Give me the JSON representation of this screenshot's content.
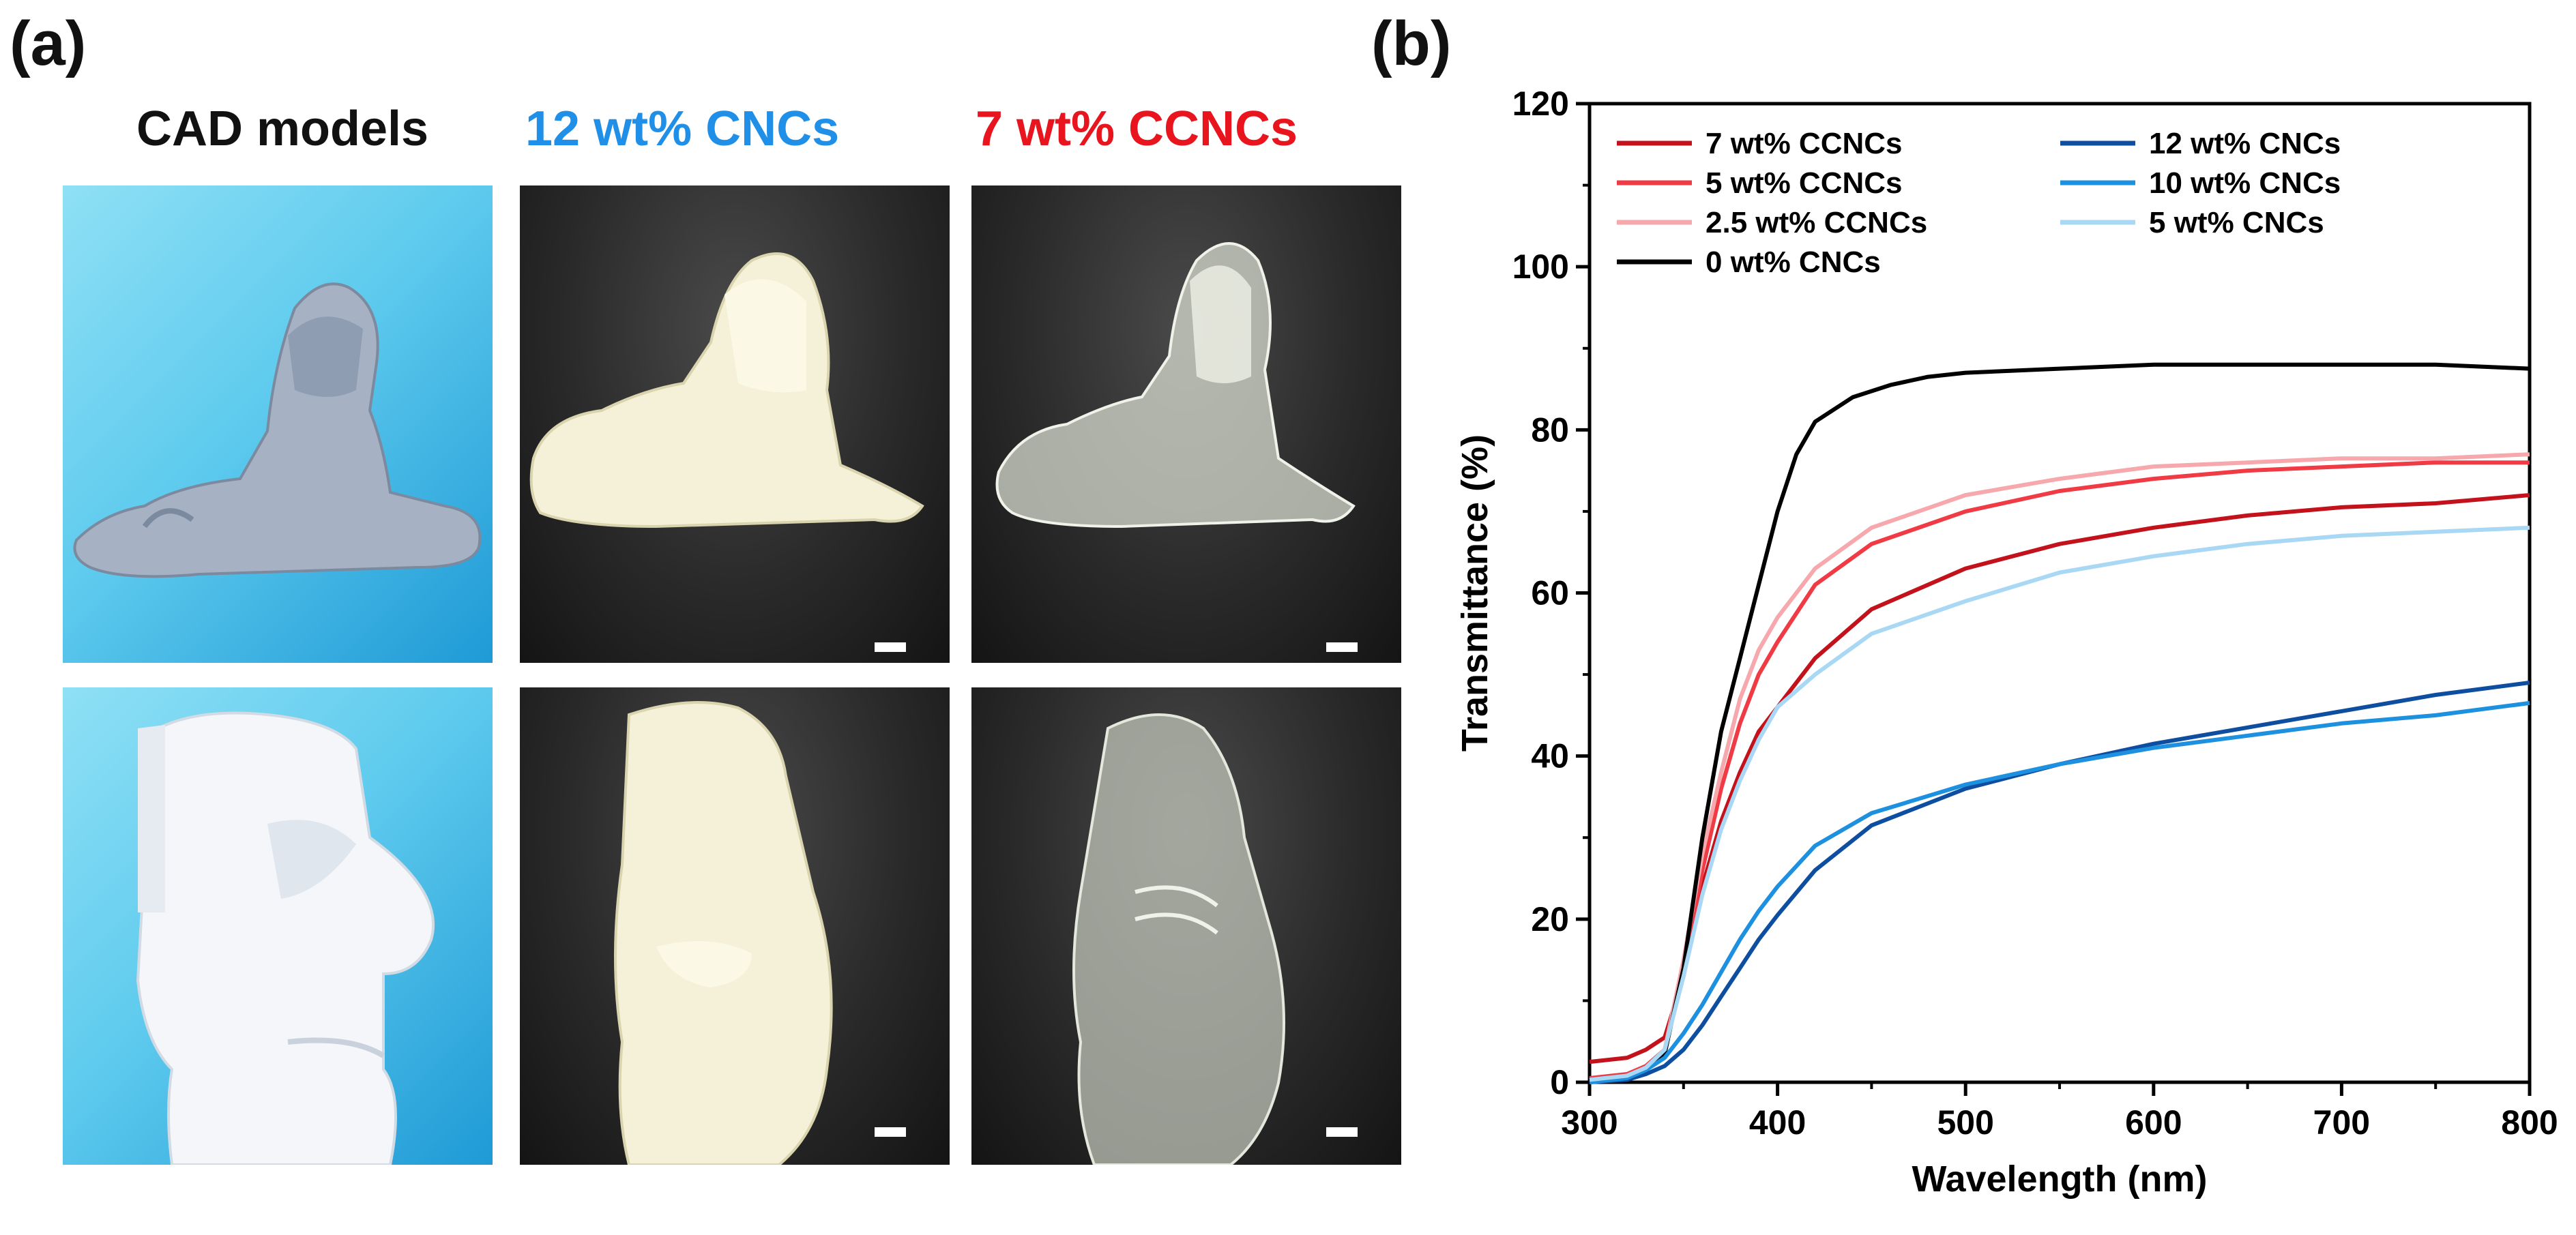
{
  "panel_a": {
    "label": "(a)",
    "headers": {
      "cad": "CAD models",
      "cnc": "12 wt% CNCs",
      "ccnc": "7 wt% CCNCs"
    },
    "colors": {
      "cad": "#111111",
      "cnc": "#1f8fe8",
      "ccnc": "#e8141e"
    }
  },
  "panel_b": {
    "label": "(b)"
  },
  "chart_data": {
    "type": "line",
    "title": "",
    "xlabel": "Wavelength (nm)",
    "ylabel": "Transmittance (%)",
    "xlim": [
      300,
      800
    ],
    "ylim": [
      0,
      120
    ],
    "xticks": [
      300,
      400,
      500,
      600,
      700,
      800
    ],
    "yticks": [
      0,
      20,
      40,
      60,
      80,
      100,
      120
    ],
    "grid": false,
    "legend_position": "top-left",
    "legend_columns": [
      [
        "7 wt% CCNCs",
        "5 wt% CCNCs",
        "2.5 wt% CCNCs",
        "0 wt% CNCs"
      ],
      [
        "12 wt% CNCs",
        "10 wt% CNCs",
        "5 wt% CNCs"
      ]
    ],
    "series": [
      {
        "name": "7 wt% CCNCs",
        "color": "#c3121b",
        "x": [
          300,
          320,
          330,
          340,
          350,
          360,
          370,
          380,
          390,
          400,
          420,
          450,
          500,
          550,
          600,
          650,
          700,
          750,
          800
        ],
        "y": [
          2.5,
          3.0,
          4.0,
          5.5,
          13,
          24,
          32,
          38,
          43,
          46,
          52,
          58,
          63,
          66,
          68,
          69.5,
          70.5,
          71,
          72
        ]
      },
      {
        "name": "5 wt% CCNCs",
        "color": "#f03a44",
        "x": [
          300,
          320,
          330,
          340,
          350,
          360,
          370,
          380,
          390,
          400,
          420,
          450,
          500,
          550,
          600,
          650,
          700,
          750,
          800
        ],
        "y": [
          0.5,
          1.0,
          2.0,
          4.0,
          14,
          26,
          36,
          44,
          50,
          54,
          61,
          66,
          70,
          72.5,
          74,
          75,
          75.5,
          76,
          76
        ]
      },
      {
        "name": "2.5 wt% CCNCs",
        "color": "#f6a8ad",
        "x": [
          300,
          320,
          330,
          340,
          350,
          360,
          370,
          380,
          390,
          400,
          420,
          450,
          500,
          550,
          600,
          650,
          700,
          750,
          800
        ],
        "y": [
          0.3,
          0.8,
          1.8,
          4.0,
          15,
          28,
          38,
          47,
          53,
          57,
          63,
          68,
          72,
          74,
          75.5,
          76,
          76.5,
          76.5,
          77
        ]
      },
      {
        "name": "0 wt% CNCs",
        "color": "#000000",
        "x": [
          300,
          320,
          330,
          340,
          350,
          360,
          370,
          380,
          390,
          400,
          410,
          420,
          440,
          460,
          480,
          500,
          550,
          600,
          650,
          700,
          750,
          800
        ],
        "y": [
          0.3,
          0.8,
          1.5,
          3.5,
          14,
          30,
          43,
          52,
          61,
          70,
          77,
          81,
          84,
          85.5,
          86.5,
          87,
          87.5,
          88,
          88,
          88,
          88,
          87.5
        ]
      },
      {
        "name": "12 wt% CNCs",
        "color": "#0d4ea0",
        "x": [
          300,
          320,
          330,
          340,
          350,
          360,
          370,
          380,
          390,
          400,
          420,
          450,
          500,
          550,
          600,
          650,
          700,
          750,
          800
        ],
        "y": [
          0,
          0.3,
          1.0,
          2.0,
          4.0,
          7.0,
          10.5,
          14,
          17.5,
          20.5,
          26,
          31.5,
          36,
          39,
          41.5,
          43.5,
          45.5,
          47.5,
          49
        ]
      },
      {
        "name": "10 wt% CNCs",
        "color": "#1e90e0",
        "x": [
          300,
          320,
          330,
          340,
          350,
          360,
          370,
          380,
          390,
          400,
          420,
          450,
          500,
          550,
          600,
          650,
          700,
          750,
          800
        ],
        "y": [
          0,
          0.5,
          1.5,
          3.0,
          6.0,
          9.5,
          13.5,
          17.5,
          21,
          24,
          29,
          33,
          36.5,
          39,
          41,
          42.5,
          44,
          45,
          46.5
        ]
      },
      {
        "name": "5 wt% CNCs",
        "color": "#a9d8f5",
        "x": [
          300,
          320,
          330,
          340,
          350,
          360,
          370,
          380,
          390,
          400,
          420,
          450,
          500,
          550,
          600,
          650,
          700,
          750,
          800
        ],
        "y": [
          0.3,
          0.8,
          1.8,
          4.0,
          13,
          23,
          31,
          37,
          42,
          46,
          50,
          55,
          59,
          62.5,
          64.5,
          66,
          67,
          67.5,
          68
        ]
      }
    ]
  }
}
